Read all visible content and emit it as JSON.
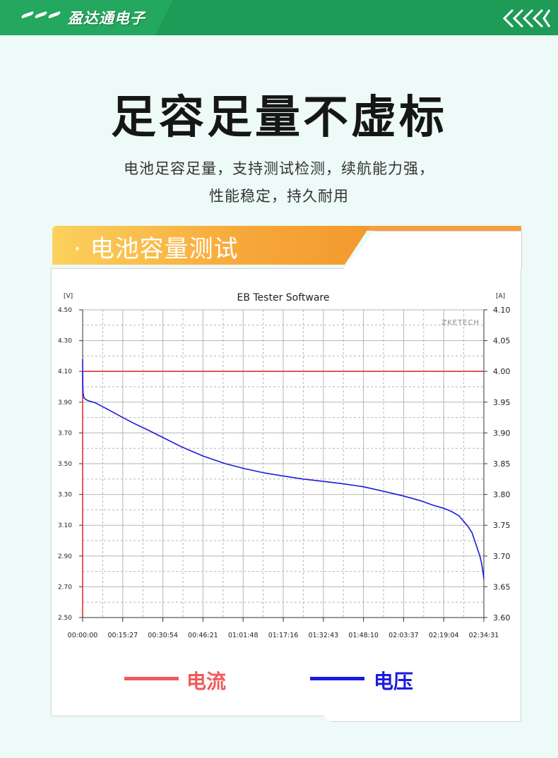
{
  "header": {
    "brand": "盈达通电子"
  },
  "title": "足容足量不虚标",
  "subtitle": [
    "电池足容足量，支持测试检测，续航能力强，",
    "性能稳定，持久耐用"
  ],
  "section": {
    "title": "· 电池容量测试"
  },
  "colors": {
    "green": "#1e9b57",
    "orange": "#f5a03a",
    "current": "#e23030",
    "voltage": "#1a1ae0",
    "legendCurrent": "#f05a5a"
  },
  "chart_data": {
    "type": "line",
    "title": "EB Tester Software",
    "watermark": "ZKETECH",
    "ylabel": "[V]",
    "y2label": "[A]",
    "ylim": [
      2.5,
      4.5
    ],
    "y2lim": [
      3.6,
      4.1
    ],
    "y_ticks": [
      "4.50",
      "4.30",
      "4.10",
      "3.90",
      "3.70",
      "3.50",
      "3.30",
      "3.10",
      "2.90",
      "2.70",
      "2.50"
    ],
    "y2_ticks": [
      "4.10",
      "4.05",
      "4.00",
      "3.95",
      "3.90",
      "3.85",
      "3.80",
      "3.75",
      "3.70",
      "3.65",
      "3.60"
    ],
    "x_ticks": [
      "00:00:00",
      "00:15:27",
      "00:30:54",
      "00:46:21",
      "01:01:48",
      "01:17:16",
      "01:32:43",
      "01:48:10",
      "02:03:37",
      "02:19:04",
      "02:34:31"
    ],
    "series": [
      {
        "name": "电流",
        "axis": "right",
        "x": [
          "00:00:00",
          "00:00:00",
          "00:00:01",
          "02:34:31"
        ],
        "y": [
          3.6,
          4.0,
          4.0,
          4.0
        ]
      },
      {
        "name": "电压",
        "axis": "left",
        "x": [
          "00:00:00",
          "00:00:01",
          "00:00:10",
          "00:00:30",
          "00:01:00",
          "00:02:00",
          "00:05:00",
          "00:10:00",
          "00:15:27",
          "00:20:00",
          "00:25:00",
          "00:30:54",
          "00:38:00",
          "00:46:21",
          "00:55:00",
          "01:01:48",
          "01:10:00",
          "01:17:16",
          "01:25:00",
          "01:32:43",
          "01:40:00",
          "01:48:10",
          "01:56:00",
          "02:03:37",
          "02:10:00",
          "02:15:00",
          "02:19:04",
          "02:22:00",
          "02:25:00",
          "02:27:00",
          "02:28:30",
          "02:30:00",
          "02:31:00",
          "02:32:00",
          "02:33:00",
          "02:33:40",
          "02:34:10",
          "02:34:31"
        ],
        "y": [
          4.18,
          4.02,
          3.96,
          3.93,
          3.92,
          3.91,
          3.895,
          3.85,
          3.8,
          3.76,
          3.72,
          3.67,
          3.61,
          3.55,
          3.5,
          3.47,
          3.44,
          3.42,
          3.4,
          3.385,
          3.37,
          3.35,
          3.32,
          3.29,
          3.26,
          3.23,
          3.21,
          3.19,
          3.16,
          3.12,
          3.09,
          3.05,
          3.0,
          2.95,
          2.9,
          2.85,
          2.8,
          2.75
        ]
      }
    ],
    "grid": true,
    "legend": "bottom"
  }
}
